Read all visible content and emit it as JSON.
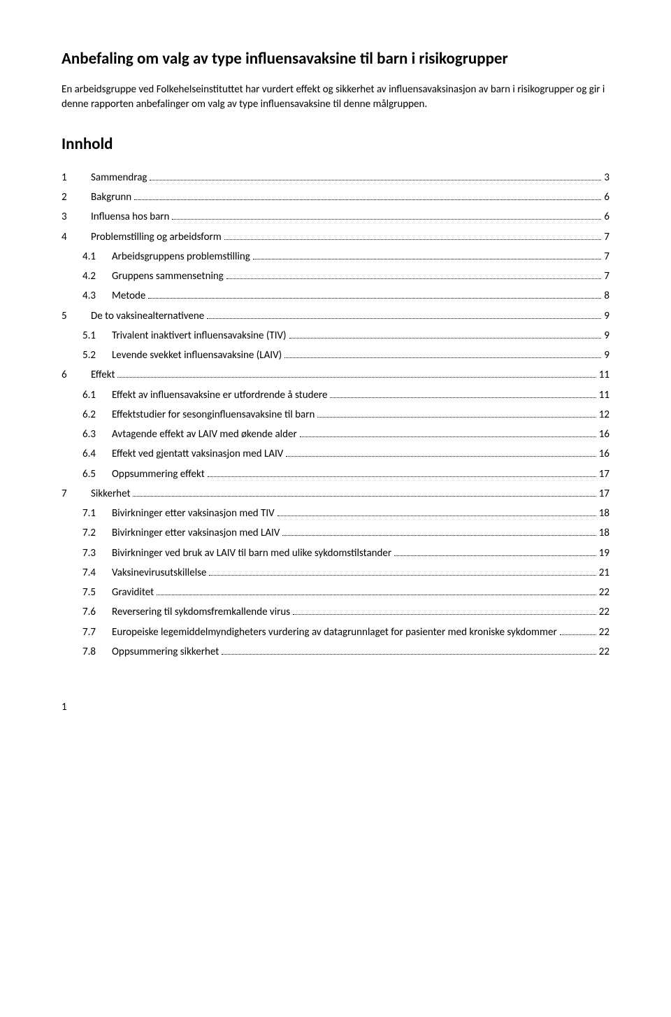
{
  "title": "Anbefaling om valg av type influensavaksine til barn i risikogrupper",
  "intro": "En arbeidsgruppe ved Folkehelseinstituttet har vurdert effekt og sikkerhet av influensavaksinasjon av barn i risikogrupper og gir i denne rapporten anbefalinger om valg av type influensavaksine til denne målgruppen.",
  "contents_heading": "Innhold",
  "toc": [
    {
      "level": 1,
      "num": "1",
      "label": "Sammendrag",
      "page": "3"
    },
    {
      "level": 1,
      "num": "2",
      "label": "Bakgrunn",
      "page": "6"
    },
    {
      "level": 1,
      "num": "3",
      "label": "Influensa hos barn",
      "page": "6"
    },
    {
      "level": 1,
      "num": "4",
      "label": "Problemstilling og arbeidsform",
      "page": "7"
    },
    {
      "level": 2,
      "num": "4.1",
      "label": "Arbeidsgruppens problemstilling",
      "page": "7"
    },
    {
      "level": 2,
      "num": "4.2",
      "label": "Gruppens sammensetning",
      "page": "7"
    },
    {
      "level": 2,
      "num": "4.3",
      "label": "Metode",
      "page": "8"
    },
    {
      "level": 1,
      "num": "5",
      "label": "De to vaksinealternativene",
      "page": "9"
    },
    {
      "level": 2,
      "num": "5.1",
      "label": "Trivalent inaktivert influensavaksine (TIV)",
      "page": "9"
    },
    {
      "level": 2,
      "num": "5.2",
      "label": "Levende svekket influensavaksine (LAIV)",
      "page": "9"
    },
    {
      "level": 1,
      "num": "6",
      "label": "Effekt",
      "page": "11"
    },
    {
      "level": 2,
      "num": "6.1",
      "label": "Effekt av influensavaksine er utfordrende å studere",
      "page": "11"
    },
    {
      "level": 2,
      "num": "6.2",
      "label": "Effektstudier for sesonginfluensavaksine til barn",
      "page": "12"
    },
    {
      "level": 2,
      "num": "6.3",
      "label": "Avtagende effekt av LAIV med økende alder",
      "page": "16"
    },
    {
      "level": 2,
      "num": "6.4",
      "label": "Effekt ved gjentatt vaksinasjon med LAIV",
      "page": "16"
    },
    {
      "level": 2,
      "num": "6.5",
      "label": "Oppsummering effekt",
      "page": "17"
    },
    {
      "level": 1,
      "num": "7",
      "label": "Sikkerhet",
      "page": "17"
    },
    {
      "level": 2,
      "num": "7.1",
      "label": "Bivirkninger etter vaksinasjon med TIV",
      "page": "18"
    },
    {
      "level": 2,
      "num": "7.2",
      "label": "Bivirkninger etter vaksinasjon med LAIV",
      "page": "18"
    },
    {
      "level": 2,
      "num": "7.3",
      "label": "Bivirkninger ved bruk av LAIV til barn med ulike sykdomstilstander",
      "page": "19"
    },
    {
      "level": 2,
      "num": "7.4",
      "label": "Vaksinevirusutskillelse",
      "page": "21"
    },
    {
      "level": 2,
      "num": "7.5",
      "label": "Graviditet",
      "page": "22"
    },
    {
      "level": 2,
      "num": "7.6",
      "label": "Reversering til sykdomsfremkallende virus",
      "page": "22"
    },
    {
      "level": 2,
      "num": "7.7",
      "label": "Europeiske legemiddelmyndigheters vurdering av datagrunnlaget for pasienter med kroniske sykdommer",
      "page": "22"
    },
    {
      "level": 2,
      "num": "7.8",
      "label": "Oppsummering sikkerhet",
      "page": "22"
    }
  ],
  "page_number": "1"
}
